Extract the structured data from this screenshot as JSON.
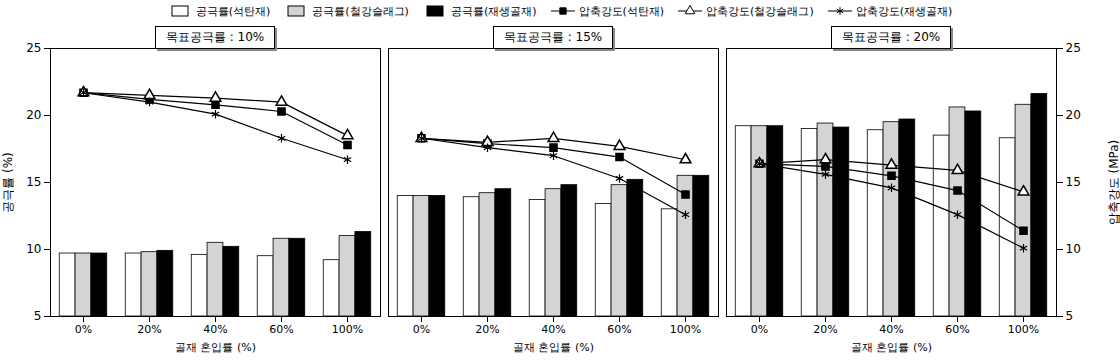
{
  "chart_data": [
    {
      "type": "bar",
      "title": "목표공극률 : 10%",
      "categories": [
        "0%",
        "20%",
        "40%",
        "60%",
        "100%"
      ],
      "xlabel": "골재 혼입률 (%)",
      "ylabel": "공극률 (%)",
      "ylim": [
        5,
        25
      ],
      "yticks": [
        5,
        10,
        15,
        20,
        25
      ],
      "y2lim": [
        5,
        25
      ],
      "series": [
        {
          "name": "공극률(석탄재)",
          "type": "bar",
          "color": "#ffffff",
          "values": [
            9.7,
            9.7,
            9.6,
            9.5,
            9.2
          ]
        },
        {
          "name": "공극률(철강슬래그)",
          "type": "bar",
          "color": "#d4d4d4",
          "values": [
            9.7,
            9.8,
            10.5,
            10.8,
            11.0
          ]
        },
        {
          "name": "공극률(재생골재)",
          "type": "bar",
          "color": "#000000",
          "values": [
            9.7,
            9.9,
            10.2,
            10.8,
            11.3
          ]
        },
        {
          "name": "압축강도(석탄재)",
          "type": "line",
          "axis": "y2",
          "color": "#000000",
          "marker": "square",
          "line_style": "solid",
          "values": [
            21.7,
            21.2,
            20.8,
            20.3,
            17.8
          ]
        },
        {
          "name": "압축강도(철강슬래그)",
          "type": "line",
          "axis": "y2",
          "color": "#000000",
          "marker": "triangle",
          "line_style": "solid",
          "values": [
            21.7,
            21.5,
            21.3,
            21.0,
            18.5
          ]
        },
        {
          "name": "압축강도(재생골재)",
          "type": "line",
          "axis": "y2",
          "color": "#000000",
          "marker": "asterisk",
          "line_style": "solid",
          "values": [
            21.7,
            21.0,
            20.1,
            18.3,
            16.7
          ]
        }
      ]
    },
    {
      "type": "bar",
      "title": "목표공극률 : 15%",
      "categories": [
        "0%",
        "20%",
        "40%",
        "60%",
        "100%"
      ],
      "xlabel": "골재 혼입률 (%)",
      "ylim": [
        5,
        25
      ],
      "y2lim": [
        5,
        25
      ],
      "legend": "top",
      "series": [
        {
          "name": "공극률(석탄재)",
          "type": "bar",
          "color": "#ffffff",
          "values": [
            14.0,
            13.9,
            13.7,
            13.4,
            13.0
          ]
        },
        {
          "name": "공극률(철강슬래그)",
          "type": "bar",
          "color": "#d4d4d4",
          "values": [
            14.0,
            14.2,
            14.5,
            14.8,
            15.5
          ]
        },
        {
          "name": "공극률(재생골재)",
          "type": "bar",
          "color": "#000000",
          "values": [
            14.0,
            14.5,
            14.8,
            15.2,
            15.5
          ]
        },
        {
          "name": "압축강도(석탄재)",
          "type": "line",
          "axis": "y2",
          "color": "#000000",
          "marker": "square",
          "line_style": "solid",
          "values": [
            18.3,
            17.9,
            17.6,
            16.9,
            14.1
          ]
        },
        {
          "name": "압축강도(철강슬래그)",
          "type": "line",
          "axis": "y2",
          "color": "#000000",
          "marker": "triangle",
          "line_style": "solid",
          "values": [
            18.3,
            18.0,
            18.3,
            17.7,
            16.7
          ]
        },
        {
          "name": "압축강도(재생골재)",
          "type": "line",
          "axis": "y2",
          "color": "#000000",
          "marker": "asterisk",
          "line_style": "solid",
          "values": [
            18.3,
            17.6,
            17.0,
            15.3,
            12.6
          ]
        }
      ]
    },
    {
      "type": "bar",
      "title": "목표공극률 : 20%",
      "categories": [
        "0%",
        "20%",
        "40%",
        "60%",
        "100%"
      ],
      "xlabel": "골재 혼입률 (%)",
      "y2label": "압축강도 (MPa)",
      "ylim": [
        5,
        25
      ],
      "y2lim": [
        5,
        25
      ],
      "y2ticks": [
        5,
        10,
        15,
        20,
        25
      ],
      "series": [
        {
          "name": "공극률(석탄재)",
          "type": "bar",
          "color": "#ffffff",
          "values": [
            19.2,
            19.0,
            18.9,
            18.5,
            18.3
          ]
        },
        {
          "name": "공극률(철강슬래그)",
          "type": "bar",
          "color": "#d4d4d4",
          "values": [
            19.2,
            19.4,
            19.5,
            20.6,
            20.8
          ]
        },
        {
          "name": "공극률(재생골재)",
          "type": "bar",
          "color": "#000000",
          "values": [
            19.2,
            19.1,
            19.7,
            20.3,
            21.6
          ]
        },
        {
          "name": "압축강도(석탄재)",
          "type": "line",
          "axis": "y2",
          "color": "#000000",
          "marker": "square",
          "line_style": "solid",
          "values": [
            16.4,
            16.2,
            15.5,
            14.4,
            11.4
          ]
        },
        {
          "name": "압축강도(철강슬래그)",
          "type": "line",
          "axis": "y2",
          "color": "#000000",
          "marker": "triangle",
          "line_style": "solid",
          "values": [
            16.4,
            16.7,
            16.3,
            15.9,
            14.3
          ]
        },
        {
          "name": "압축강도(재생골재)",
          "type": "line",
          "axis": "y2",
          "color": "#000000",
          "marker": "asterisk",
          "line_style": "solid",
          "values": [
            16.4,
            15.6,
            14.6,
            12.6,
            10.1
          ]
        }
      ]
    }
  ]
}
